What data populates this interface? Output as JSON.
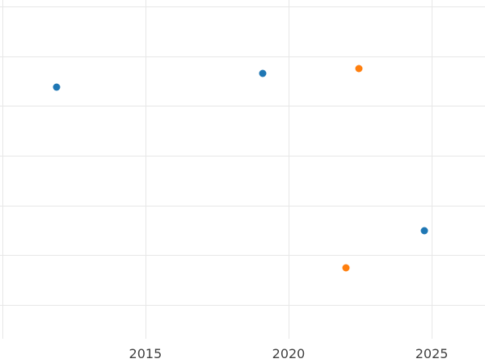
{
  "chart_data": {
    "type": "scatter",
    "title": "",
    "xlabel": "",
    "ylabel": "",
    "grid": true,
    "legend": "none",
    "xlim": [
      2009.92,
      2026.86
    ],
    "ylim": [
      -0.68,
      6.13
    ],
    "x_ticks": [
      "2015",
      "2020",
      "2025"
    ],
    "x_tick_values": [
      2015,
      2020,
      2025
    ],
    "x_gridlines": [
      2010,
      2015,
      2020,
      2025
    ],
    "y_gridlines": [
      0,
      1,
      2,
      3,
      4,
      5,
      6
    ],
    "series": [
      {
        "name": "blue",
        "color": "#1f77b4",
        "points": [
          {
            "x": 2011.9,
            "y": 4.38
          },
          {
            "x": 2019.1,
            "y": 4.65
          },
          {
            "x": 2024.75,
            "y": 1.49
          }
        ]
      },
      {
        "name": "orange",
        "color": "#ff7f0e",
        "points": [
          {
            "x": 2022.45,
            "y": 4.75
          },
          {
            "x": 2022.0,
            "y": 0.75
          }
        ]
      }
    ],
    "colors": {
      "background": "#ffffff",
      "gridline": "#e7e7e7",
      "tick_text": "#3f3f3f"
    }
  }
}
